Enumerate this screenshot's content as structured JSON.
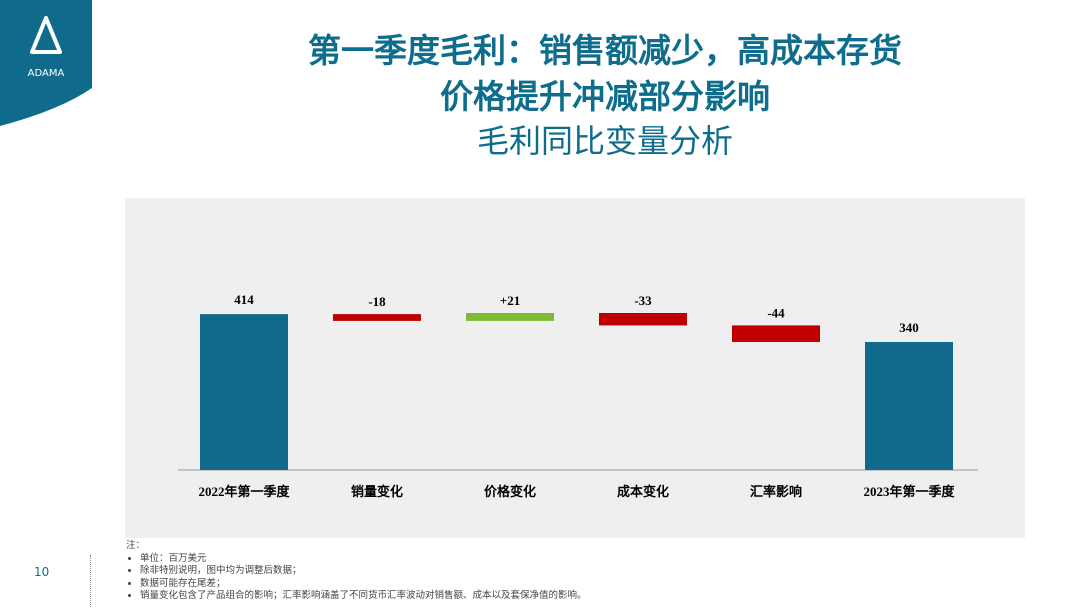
{
  "logo": "ADAMA",
  "title_lines": [
    "第一季度毛利：销售额减少，高成本存货",
    "价格提升冲减部分影响"
  ],
  "subtitle": "毛利同比变量分析",
  "chart_data": {
    "type": "waterfall",
    "categories": [
      "2022年第一季度",
      "销量变化",
      "价格变化",
      "成本变化",
      "汇率影响",
      "2023年第一季度"
    ],
    "values": [
      414,
      -18,
      21,
      -33,
      -44,
      340
    ],
    "value_labels": [
      "414",
      "-18",
      "+21",
      "-33",
      "-44",
      "340"
    ],
    "total_color": "#0f6a8c",
    "increase_color": "#7cbb33",
    "decrease_color": "#c00000"
  },
  "notes": {
    "heading": "注：",
    "items": [
      "单位：百万美元",
      "除非特别说明，图中均为调整后数据；",
      "数据可能存在尾差；",
      "销量变化包含了产品组合的影响；汇率影响涵盖了不同货币汇率波动对销售额、成本以及套保净值的影响。"
    ]
  },
  "page_number": "10"
}
